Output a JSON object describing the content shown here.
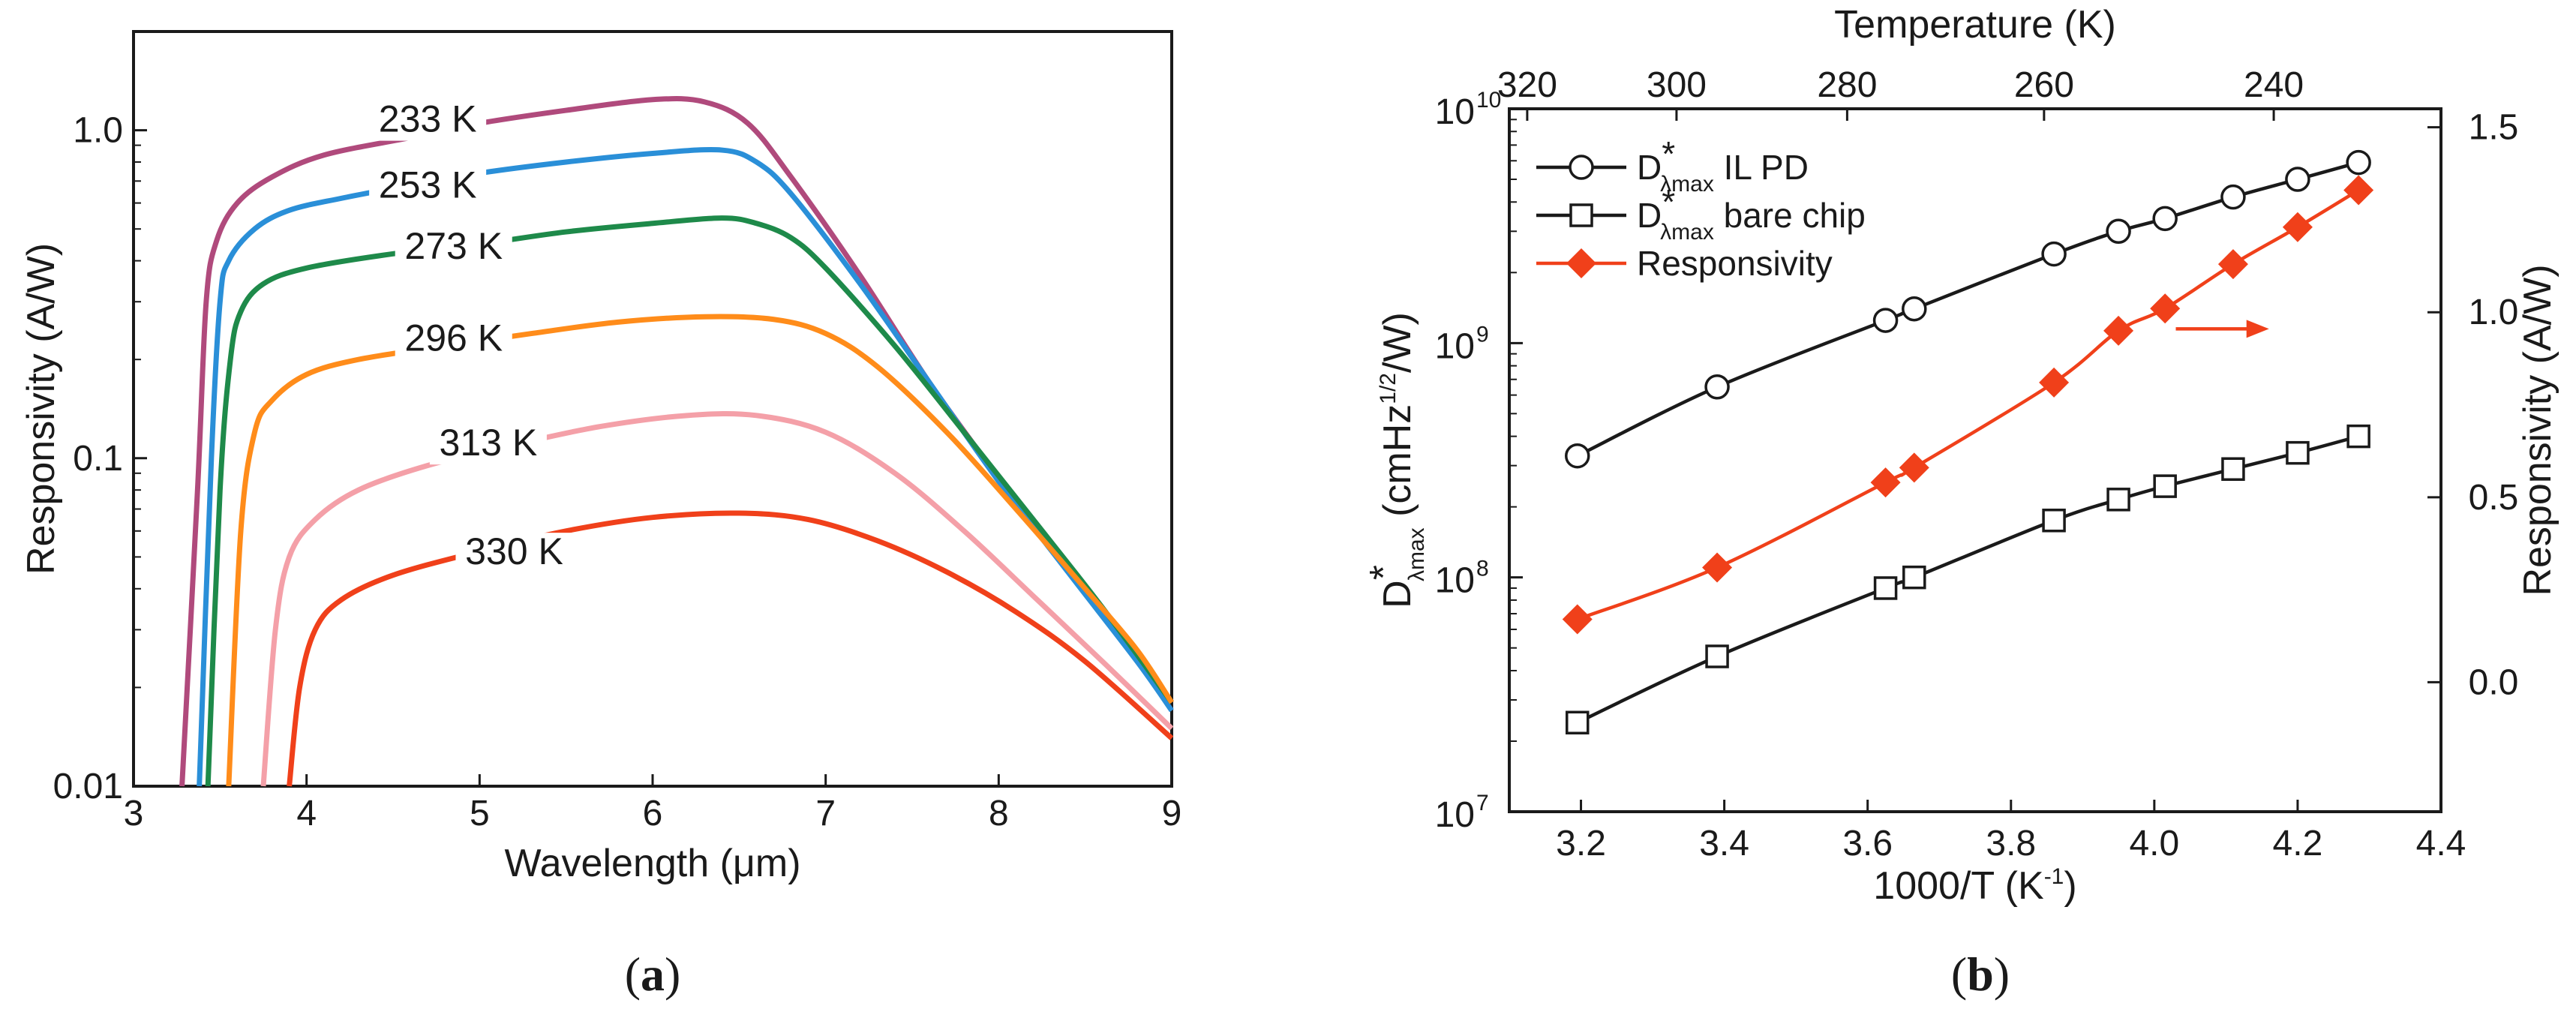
{
  "chart_data": [
    {
      "id": "a",
      "type": "line",
      "panel_label": "a",
      "xlabel": "Wavelength (μm)",
      "ylabel": "Responsivity (A/W)",
      "xlim": [
        3,
        9
      ],
      "ylim": [
        0.01,
        2.0
      ],
      "yscale": "log",
      "x_ticks": [
        3,
        4,
        5,
        6,
        7,
        8,
        9
      ],
      "x_tick_labels": [
        "3",
        "4",
        "5",
        "6",
        "7",
        "8",
        "9"
      ],
      "y_ticks": [
        0.01,
        0.1,
        1.0
      ],
      "y_tick_labels": [
        "0.01",
        "0.1",
        "1.0"
      ],
      "series": [
        {
          "name": "233 K",
          "label_pos": [
            4.7,
            1.0
          ],
          "color": "#b04a7c",
          "points": [
            [
              3.28,
              0.01
            ],
            [
              3.37,
              0.08
            ],
            [
              3.42,
              0.3
            ],
            [
              3.48,
              0.46
            ],
            [
              3.6,
              0.6
            ],
            [
              3.8,
              0.72
            ],
            [
              4.1,
              0.84
            ],
            [
              4.6,
              0.95
            ],
            [
              5.0,
              1.05
            ],
            [
              5.5,
              1.15
            ],
            [
              6.0,
              1.24
            ],
            [
              6.3,
              1.22
            ],
            [
              6.55,
              1.05
            ],
            [
              6.8,
              0.72
            ],
            [
              7.2,
              0.36
            ],
            [
              7.6,
              0.17
            ],
            [
              8.0,
              0.087
            ],
            [
              8.4,
              0.046
            ],
            [
              8.8,
              0.025
            ],
            [
              9.0,
              0.018
            ]
          ]
        },
        {
          "name": "253 K",
          "label_pos": [
            4.7,
            0.63
          ],
          "color": "#2a8fd8",
          "points": [
            [
              3.38,
              0.01
            ],
            [
              3.45,
              0.1
            ],
            [
              3.5,
              0.3
            ],
            [
              3.55,
              0.4
            ],
            [
              3.7,
              0.5
            ],
            [
              3.9,
              0.57
            ],
            [
              4.2,
              0.62
            ],
            [
              4.6,
              0.68
            ],
            [
              5.0,
              0.74
            ],
            [
              5.5,
              0.8
            ],
            [
              6.0,
              0.85
            ],
            [
              6.4,
              0.87
            ],
            [
              6.6,
              0.8
            ],
            [
              6.8,
              0.64
            ],
            [
              7.2,
              0.34
            ],
            [
              7.6,
              0.17
            ],
            [
              8.0,
              0.085
            ],
            [
              8.4,
              0.045
            ],
            [
              8.8,
              0.024
            ],
            [
              9.0,
              0.017
            ]
          ]
        },
        {
          "name": "273 K",
          "label_pos": [
            4.85,
            0.41
          ],
          "color": "#1e8a4a",
          "points": [
            [
              3.43,
              0.01
            ],
            [
              3.5,
              0.08
            ],
            [
              3.56,
              0.2
            ],
            [
              3.62,
              0.28
            ],
            [
              3.75,
              0.34
            ],
            [
              4.0,
              0.38
            ],
            [
              4.5,
              0.42
            ],
            [
              5.0,
              0.45
            ],
            [
              5.5,
              0.49
            ],
            [
              6.0,
              0.52
            ],
            [
              6.4,
              0.54
            ],
            [
              6.6,
              0.52
            ],
            [
              6.8,
              0.47
            ],
            [
              7.0,
              0.38
            ],
            [
              7.4,
              0.22
            ],
            [
              7.8,
              0.12
            ],
            [
              8.2,
              0.065
            ],
            [
              8.6,
              0.035
            ],
            [
              9.0,
              0.018
            ]
          ]
        },
        {
          "name": "296 K",
          "label_pos": [
            4.85,
            0.215
          ],
          "color": "#ff8c1a",
          "points": [
            [
              3.55,
              0.01
            ],
            [
              3.62,
              0.06
            ],
            [
              3.7,
              0.12
            ],
            [
              3.8,
              0.15
            ],
            [
              4.0,
              0.18
            ],
            [
              4.3,
              0.2
            ],
            [
              4.8,
              0.22
            ],
            [
              5.3,
              0.24
            ],
            [
              5.8,
              0.26
            ],
            [
              6.3,
              0.27
            ],
            [
              6.7,
              0.265
            ],
            [
              7.0,
              0.24
            ],
            [
              7.3,
              0.19
            ],
            [
              7.7,
              0.12
            ],
            [
              8.1,
              0.07
            ],
            [
              8.5,
              0.04
            ],
            [
              8.8,
              0.026
            ],
            [
              9.0,
              0.018
            ]
          ]
        },
        {
          "name": "313 K",
          "label_pos": [
            5.05,
            0.103
          ],
          "color": "#f4a0a8",
          "points": [
            [
              3.75,
              0.01
            ],
            [
              3.82,
              0.03
            ],
            [
              3.9,
              0.05
            ],
            [
              4.05,
              0.065
            ],
            [
              4.3,
              0.08
            ],
            [
              4.7,
              0.095
            ],
            [
              5.2,
              0.11
            ],
            [
              5.7,
              0.125
            ],
            [
              6.2,
              0.135
            ],
            [
              6.6,
              0.135
            ],
            [
              7.0,
              0.12
            ],
            [
              7.4,
              0.09
            ],
            [
              7.8,
              0.06
            ],
            [
              8.2,
              0.038
            ],
            [
              8.6,
              0.024
            ],
            [
              9.0,
              0.015
            ]
          ]
        },
        {
          "name": "330 K",
          "label_pos": [
            5.2,
            0.048
          ],
          "color": "#f0401a",
          "points": [
            [
              3.9,
              0.01
            ],
            [
              3.96,
              0.02
            ],
            [
              4.05,
              0.03
            ],
            [
              4.2,
              0.037
            ],
            [
              4.5,
              0.044
            ],
            [
              5.0,
              0.052
            ],
            [
              5.5,
              0.06
            ],
            [
              6.0,
              0.066
            ],
            [
              6.5,
              0.068
            ],
            [
              6.9,
              0.065
            ],
            [
              7.3,
              0.056
            ],
            [
              7.7,
              0.045
            ],
            [
              8.1,
              0.034
            ],
            [
              8.5,
              0.024
            ],
            [
              9.0,
              0.014
            ]
          ]
        }
      ]
    },
    {
      "id": "b",
      "type": "line",
      "panel_label": "b",
      "xlabel": "1000/T (K",
      "xlabel_sup": "-1",
      "xlabel_end": ")",
      "ylabel_left_main": "D",
      "ylabel_left_star": "*",
      "ylabel_left_sub": "λmax",
      "ylabel_left_rest": " (cmHz",
      "ylabel_left_sup": "1/2",
      "ylabel_left_end": "/W)",
      "ylabel_right": "Responsivity (A/W)",
      "top_axis_label": "Temperature (K)",
      "xlim": [
        3.1,
        4.4
      ],
      "ylim_left": [
        10000000.0,
        10000000000.0
      ],
      "ylim_right": [
        -0.35,
        1.55
      ],
      "x_ticks": [
        3.2,
        3.4,
        3.6,
        3.8,
        4.0,
        4.2,
        4.4
      ],
      "x_tick_labels": [
        "3.2",
        "3.4",
        "3.6",
        "3.8",
        "4.0",
        "4.2",
        "4.4"
      ],
      "y_left_ticks": [
        10000000.0,
        100000000.0,
        1000000000.0,
        10000000000.0
      ],
      "y_left_tick_base": [
        "10",
        "10",
        "10",
        "10"
      ],
      "y_left_tick_exp": [
        "7",
        "8",
        "9",
        "10"
      ],
      "y_right_ticks": [
        0.0,
        0.5,
        1.0,
        1.5
      ],
      "y_right_tick_labels": [
        "0.0",
        "0.5",
        "1.0",
        "1.5"
      ],
      "top_ticks": [
        320,
        300,
        280,
        260,
        240
      ],
      "top_tick_labels": [
        "320",
        "300",
        "280",
        "260",
        "240"
      ],
      "legend": [
        {
          "main": "D",
          "star": "*",
          "sub": "λmax",
          "text": " IL PD"
        },
        {
          "main": "D",
          "star": "*",
          "sub": "λmax",
          "text": " bare chip"
        },
        {
          "main": "",
          "star": "",
          "sub": "",
          "text": "Responsivity"
        }
      ],
      "series": [
        {
          "name": "D*λmax IL PD",
          "axis": "left",
          "marker": "circle",
          "color": "#1a1a1a",
          "x": [
            3.195,
            3.39,
            3.625,
            3.665,
            3.86,
            3.95,
            4.015,
            4.11,
            4.2,
            4.285
          ],
          "y": [
            330000000.0,
            650000000.0,
            1250000000.0,
            1400000000.0,
            2400000000.0,
            3000000000.0,
            3400000000.0,
            4200000000.0,
            5000000000.0,
            5900000000.0
          ]
        },
        {
          "name": "D*λmax bare chip",
          "axis": "left",
          "marker": "square",
          "color": "#1a1a1a",
          "x": [
            3.195,
            3.39,
            3.625,
            3.665,
            3.86,
            3.95,
            4.015,
            4.11,
            4.2,
            4.285
          ],
          "y": [
            24000000.0,
            46000000.0,
            90000000.0,
            100000000.0,
            175000000.0,
            215000000.0,
            245000000.0,
            290000000.0,
            340000000.0,
            400000000.0
          ]
        },
        {
          "name": "Responsivity",
          "axis": "right",
          "marker": "diamond",
          "color": "#f0401a",
          "x": [
            3.195,
            3.39,
            3.625,
            3.665,
            3.86,
            3.95,
            4.015,
            4.11,
            4.2,
            4.285
          ],
          "y": [
            0.17,
            0.31,
            0.54,
            0.58,
            0.81,
            0.95,
            1.01,
            1.13,
            1.23,
            1.33
          ]
        }
      ],
      "arrow": {
        "from": [
          4.03,
          0.955
        ],
        "to": [
          4.16,
          0.955
        ],
        "color": "#f0401a",
        "direction": "right"
      }
    }
  ]
}
